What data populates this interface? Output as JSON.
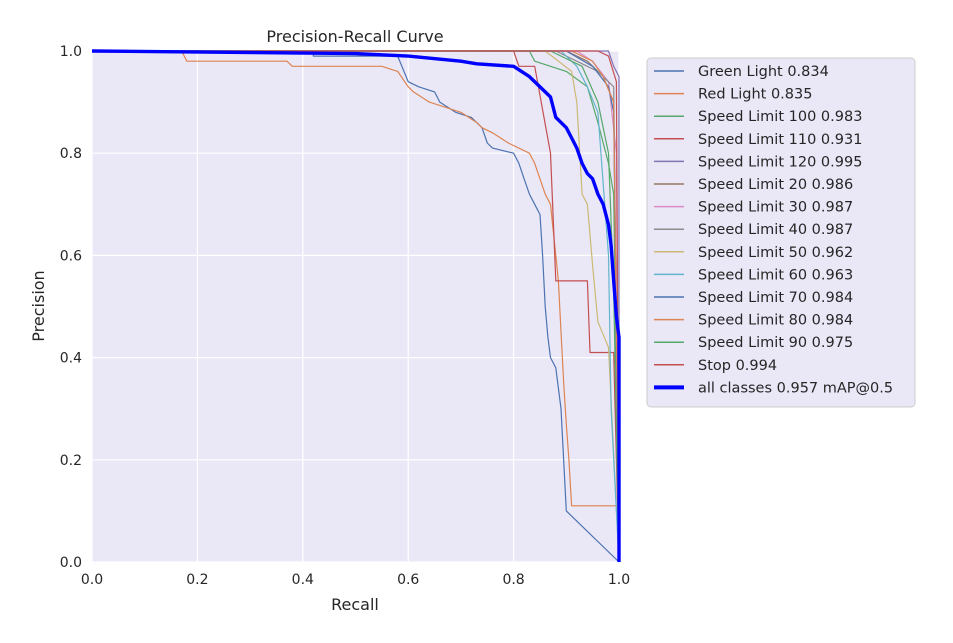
{
  "chart_data": {
    "type": "line",
    "title": "Precision-Recall Curve",
    "xlabel": "Recall",
    "ylabel": "Precision",
    "xlim": [
      0,
      1
    ],
    "ylim": [
      0,
      1
    ],
    "xticks": [
      "0.0",
      "0.2",
      "0.4",
      "0.6",
      "0.8",
      "1.0"
    ],
    "yticks": [
      "0.0",
      "0.2",
      "0.4",
      "0.6",
      "0.8",
      "1.0"
    ],
    "grid": true,
    "legend_position": "outside-right",
    "background_color": "#eae8f7",
    "series": [
      {
        "name": "Green Light 0.834",
        "color": "#4c72b0",
        "width": 1.2,
        "points": [
          [
            0,
            1
          ],
          [
            0.42,
            1
          ],
          [
            0.42,
            0.99
          ],
          [
            0.58,
            0.99
          ],
          [
            0.6,
            0.94
          ],
          [
            0.62,
            0.93
          ],
          [
            0.65,
            0.92
          ],
          [
            0.66,
            0.9
          ],
          [
            0.69,
            0.88
          ],
          [
            0.72,
            0.87
          ],
          [
            0.74,
            0.85
          ],
          [
            0.75,
            0.82
          ],
          [
            0.76,
            0.81
          ],
          [
            0.8,
            0.8
          ],
          [
            0.81,
            0.78
          ],
          [
            0.82,
            0.75
          ],
          [
            0.83,
            0.72
          ],
          [
            0.84,
            0.7
          ],
          [
            0.85,
            0.68
          ],
          [
            0.855,
            0.6
          ],
          [
            0.86,
            0.5
          ],
          [
            0.865,
            0.44
          ],
          [
            0.87,
            0.4
          ],
          [
            0.88,
            0.38
          ],
          [
            0.89,
            0.3
          ],
          [
            0.9,
            0.1
          ],
          [
            1.0,
            0.0
          ]
        ]
      },
      {
        "name": "Red Light 0.835",
        "color": "#dd8452",
        "width": 1.2,
        "points": [
          [
            0,
            1
          ],
          [
            0.17,
            1
          ],
          [
            0.18,
            0.98
          ],
          [
            0.37,
            0.98
          ],
          [
            0.38,
            0.97
          ],
          [
            0.55,
            0.97
          ],
          [
            0.58,
            0.96
          ],
          [
            0.6,
            0.93
          ],
          [
            0.61,
            0.92
          ],
          [
            0.64,
            0.9
          ],
          [
            0.67,
            0.89
          ],
          [
            0.7,
            0.88
          ],
          [
            0.73,
            0.86
          ],
          [
            0.74,
            0.85
          ],
          [
            0.76,
            0.84
          ],
          [
            0.79,
            0.82
          ],
          [
            0.83,
            0.8
          ],
          [
            0.84,
            0.78
          ],
          [
            0.86,
            0.72
          ],
          [
            0.87,
            0.7
          ],
          [
            0.88,
            0.6
          ],
          [
            0.885,
            0.55
          ],
          [
            0.89,
            0.45
          ],
          [
            0.895,
            0.35
          ],
          [
            0.9,
            0.27
          ],
          [
            0.905,
            0.2
          ],
          [
            0.91,
            0.11
          ],
          [
            1.0,
            0.11
          ],
          [
            1.0,
            0.0
          ]
        ]
      },
      {
        "name": "Speed Limit 100 0.983",
        "color": "#55a868",
        "width": 1.2,
        "points": [
          [
            0,
            1
          ],
          [
            0.83,
            1
          ],
          [
            0.84,
            0.98
          ],
          [
            0.9,
            0.96
          ],
          [
            0.94,
            0.93
          ],
          [
            0.96,
            0.86
          ],
          [
            0.97,
            0.82
          ],
          [
            0.98,
            0.78
          ],
          [
            0.99,
            0.72
          ],
          [
            1.0,
            0.0
          ]
        ]
      },
      {
        "name": "Speed Limit 110 0.931",
        "color": "#c44e52",
        "width": 1.2,
        "points": [
          [
            0,
            1
          ],
          [
            0.8,
            1
          ],
          [
            0.81,
            0.97
          ],
          [
            0.84,
            0.97
          ],
          [
            0.87,
            0.8
          ],
          [
            0.88,
            0.55
          ],
          [
            0.94,
            0.55
          ],
          [
            0.945,
            0.41
          ],
          [
            0.99,
            0.41
          ],
          [
            1.0,
            0.0
          ]
        ]
      },
      {
        "name": "Speed Limit 120 0.995",
        "color": "#8172b3",
        "width": 1.2,
        "points": [
          [
            0,
            1
          ],
          [
            0.98,
            1
          ],
          [
            0.99,
            0.97
          ],
          [
            1.0,
            0.95
          ],
          [
            1.0,
            0.0
          ]
        ]
      },
      {
        "name": "Speed Limit 20 0.986",
        "color": "#937860",
        "width": 1.2,
        "points": [
          [
            0,
            1
          ],
          [
            0.9,
            1
          ],
          [
            0.94,
            0.98
          ],
          [
            0.97,
            0.95
          ],
          [
            0.99,
            0.9
          ],
          [
            1.0,
            0.0
          ]
        ]
      },
      {
        "name": "Speed Limit 30 0.987",
        "color": "#da8bc3",
        "width": 1.2,
        "points": [
          [
            0,
            1
          ],
          [
            0.92,
            1
          ],
          [
            0.95,
            0.98
          ],
          [
            0.98,
            0.94
          ],
          [
            0.995,
            0.8
          ],
          [
            1.0,
            0.0
          ]
        ]
      },
      {
        "name": "Speed Limit 40 0.987",
        "color": "#8c8c8c",
        "width": 1.2,
        "points": [
          [
            0,
            1
          ],
          [
            0.88,
            1
          ],
          [
            0.92,
            0.98
          ],
          [
            0.96,
            0.96
          ],
          [
            0.99,
            0.93
          ],
          [
            1.0,
            0.0
          ]
        ]
      },
      {
        "name": "Speed Limit 50 0.962",
        "color": "#ccb974",
        "width": 1.2,
        "points": [
          [
            0,
            1
          ],
          [
            0.86,
            1
          ],
          [
            0.91,
            0.96
          ],
          [
            0.92,
            0.9
          ],
          [
            0.93,
            0.72
          ],
          [
            0.94,
            0.7
          ],
          [
            0.95,
            0.58
          ],
          [
            0.96,
            0.47
          ],
          [
            0.98,
            0.42
          ],
          [
            1.0,
            0.0
          ]
        ]
      },
      {
        "name": "Speed Limit 60 0.963",
        "color": "#64b5cd",
        "width": 1.2,
        "points": [
          [
            0,
            1
          ],
          [
            0.89,
            1
          ],
          [
            0.92,
            0.97
          ],
          [
            0.94,
            0.93
          ],
          [
            0.96,
            0.88
          ],
          [
            0.98,
            0.6
          ],
          [
            0.985,
            0.3
          ],
          [
            1.0,
            0.0
          ]
        ]
      },
      {
        "name": "Speed Limit 70 0.984",
        "color": "#4c72b0",
        "width": 1.2,
        "points": [
          [
            0,
            1
          ],
          [
            0.9,
            1
          ],
          [
            0.95,
            0.97
          ],
          [
            0.98,
            0.93
          ],
          [
            0.99,
            0.88
          ],
          [
            1.0,
            0.0
          ]
        ]
      },
      {
        "name": "Speed Limit 80 0.984",
        "color": "#dd8452",
        "width": 1.2,
        "points": [
          [
            0,
            1
          ],
          [
            0.91,
            1
          ],
          [
            0.95,
            0.98
          ],
          [
            0.97,
            0.95
          ],
          [
            0.99,
            0.9
          ],
          [
            1.0,
            0.0
          ]
        ]
      },
      {
        "name": "Speed Limit 90 0.975",
        "color": "#55a868",
        "width": 1.2,
        "points": [
          [
            0,
            1
          ],
          [
            0.87,
            1
          ],
          [
            0.93,
            0.97
          ],
          [
            0.96,
            0.9
          ],
          [
            0.98,
            0.8
          ],
          [
            0.99,
            0.53
          ],
          [
            1.0,
            0.0
          ]
        ]
      },
      {
        "name": "Stop 0.994",
        "color": "#c44e52",
        "width": 1.2,
        "points": [
          [
            0,
            1
          ],
          [
            0.96,
            1
          ],
          [
            0.98,
            0.99
          ],
          [
            0.995,
            0.94
          ],
          [
            1.0,
            0.0
          ]
        ]
      },
      {
        "name": "all classes 0.957 mAP@0.5",
        "color": "#0000ff",
        "width": 3.4,
        "points": [
          [
            0,
            1
          ],
          [
            0.5,
            0.995
          ],
          [
            0.6,
            0.99
          ],
          [
            0.7,
            0.98
          ],
          [
            0.73,
            0.975
          ],
          [
            0.8,
            0.97
          ],
          [
            0.83,
            0.95
          ],
          [
            0.87,
            0.91
          ],
          [
            0.88,
            0.87
          ],
          [
            0.9,
            0.85
          ],
          [
            0.91,
            0.83
          ],
          [
            0.92,
            0.81
          ],
          [
            0.93,
            0.78
          ],
          [
            0.94,
            0.76
          ],
          [
            0.95,
            0.75
          ],
          [
            0.96,
            0.72
          ],
          [
            0.97,
            0.7
          ],
          [
            0.98,
            0.66
          ],
          [
            0.985,
            0.62
          ],
          [
            0.99,
            0.55
          ],
          [
            0.995,
            0.48
          ],
          [
            1.0,
            0.44
          ],
          [
            1.0,
            0.0
          ]
        ]
      }
    ]
  }
}
